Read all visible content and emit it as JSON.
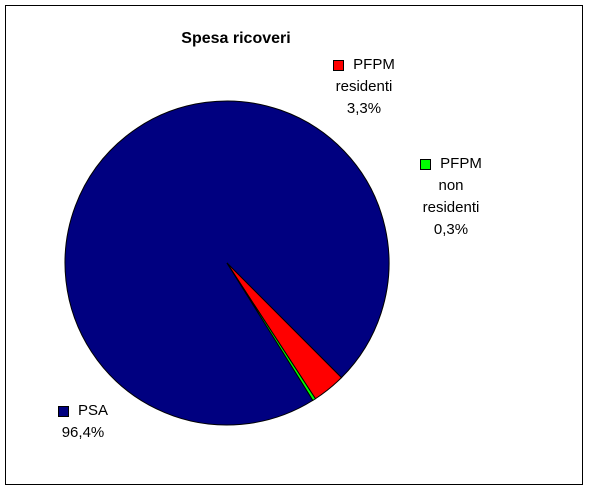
{
  "chart_data": {
    "type": "pie",
    "title": "Spesa ricoveri",
    "slices": [
      {
        "name": "PSA",
        "name_lines": [
          "PSA"
        ],
        "value": 96.4,
        "label": "96,4%",
        "color": "#000080"
      },
      {
        "name": "PFPM residenti",
        "name_lines": [
          "PFPM",
          "residenti"
        ],
        "value": 3.3,
        "label": "3,3%",
        "color": "#ff0000"
      },
      {
        "name": "PFPM non residenti",
        "name_lines": [
          "PFPM",
          "non",
          "residenti"
        ],
        "value": 0.3,
        "label": "0,3%",
        "color": "#00ff00"
      }
    ]
  }
}
